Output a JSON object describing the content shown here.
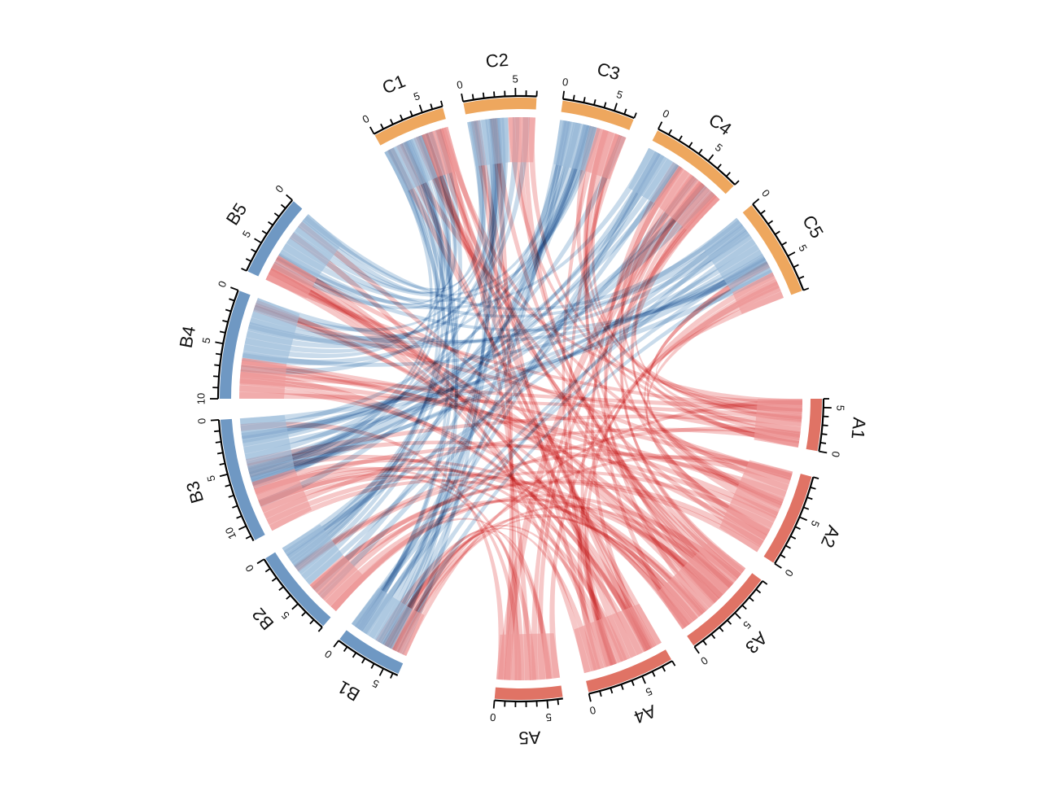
{
  "chart_data": {
    "type": "chord",
    "title": "",
    "center": [
      640,
      490
    ],
    "colors": {
      "A_sector": "#E07365",
      "B_sector": "#6F98C3",
      "C_sector": "#EEA75E",
      "A_ribbon": "#EE9A9A",
      "B_ribbon": "#9DBDDA",
      "background": "#FFFFFF"
    },
    "sectors": [
      {
        "name": "A1",
        "group": "A",
        "start_deg": 90,
        "end_deg": 100,
        "max": 6,
        "ticks_labeled": [
          "0",
          "5"
        ],
        "direction": "clockwise"
      },
      {
        "name": "A2",
        "group": "A",
        "start_deg": 105,
        "end_deg": 123,
        "max": 9,
        "ticks_labeled": [
          "0",
          "5"
        ]
      },
      {
        "name": "A3",
        "group": "A",
        "start_deg": 127,
        "end_deg": 145,
        "max": 9,
        "ticks_labeled": [
          "0",
          "5"
        ]
      },
      {
        "name": "A4",
        "group": "A",
        "start_deg": 150,
        "end_deg": 167,
        "max": 8,
        "ticks_labeled": [
          "0",
          "5"
        ]
      },
      {
        "name": "A5",
        "group": "A",
        "start_deg": 172,
        "end_deg": 185,
        "max": 6.5,
        "ticks_labeled": [
          "0",
          "5"
        ]
      },
      {
        "name": "B1",
        "group": "B",
        "start_deg": 204,
        "end_deg": 217,
        "max": 6.5,
        "ticks_labeled": [
          "0",
          "5"
        ]
      },
      {
        "name": "B2",
        "group": "B",
        "start_deg": 221,
        "end_deg": 238,
        "max": 8,
        "ticks_labeled": [
          "0",
          "5"
        ]
      },
      {
        "name": "B3",
        "group": "B",
        "start_deg": 242,
        "end_deg": 266,
        "max": 11.5,
        "ticks_labeled": [
          "0",
          "5",
          "10"
        ]
      },
      {
        "name": "B4",
        "group": "B",
        "start_deg": 270,
        "end_deg": 291,
        "max": 10,
        "ticks_labeled": [
          "0",
          "5",
          "10"
        ]
      },
      {
        "name": "B5",
        "group": "B",
        "start_deg": 295,
        "end_deg": 311,
        "max": 8,
        "ticks_labeled": [
          "0",
          "5"
        ]
      },
      {
        "name": "C1",
        "group": "C",
        "start_deg": 331,
        "end_deg": 345,
        "max": 7,
        "ticks_labeled": [
          "0",
          "5"
        ]
      },
      {
        "name": "C2",
        "group": "C",
        "start_deg": 349,
        "end_deg": 363,
        "max": 7,
        "ticks_labeled": [
          "0",
          "5"
        ]
      },
      {
        "name": "C3",
        "group": "C",
        "start_deg": 368,
        "end_deg": 382,
        "max": 7,
        "ticks_labeled": [
          "0",
          "5"
        ]
      },
      {
        "name": "C4",
        "group": "C",
        "start_deg": 387,
        "end_deg": 405,
        "max": 8,
        "ticks_labeled": [
          "0",
          "5"
        ]
      },
      {
        "name": "C5",
        "group": "C",
        "start_deg": 410,
        "end_deg": 429,
        "max": 8,
        "ticks_labeled": [
          "0",
          "5"
        ]
      }
    ],
    "links": [
      {
        "from": "C1",
        "to": "B",
        "color": "B_ribbon",
        "frac": [
          0.0,
          0.6
        ]
      },
      {
        "from": "C1",
        "to": "A",
        "color": "A_ribbon",
        "frac": [
          0.6,
          1.0
        ]
      },
      {
        "from": "C2",
        "to": "B",
        "color": "B_ribbon",
        "frac": [
          0.0,
          0.6
        ]
      },
      {
        "from": "C2",
        "to": "A",
        "color": "A_ribbon",
        "frac": [
          0.6,
          1.0
        ]
      },
      {
        "from": "C3",
        "to": "B",
        "color": "B_ribbon",
        "frac": [
          0.0,
          0.55
        ]
      },
      {
        "from": "C3",
        "to": "A",
        "color": "A_ribbon",
        "frac": [
          0.55,
          1.0
        ]
      },
      {
        "from": "C4",
        "to": "B",
        "color": "B_ribbon",
        "frac": [
          0.0,
          0.4
        ]
      },
      {
        "from": "C4",
        "to": "A",
        "color": "A_ribbon",
        "frac": [
          0.4,
          1.0
        ]
      },
      {
        "from": "C5",
        "to": "B",
        "color": "B_ribbon",
        "frac": [
          0.0,
          0.7
        ]
      },
      {
        "from": "C5",
        "to": "A",
        "color": "A_ribbon",
        "frac": [
          0.7,
          1.0
        ]
      },
      {
        "from": "B1",
        "to": "A",
        "color": "A_ribbon",
        "frac": [
          0.0,
          0.25
        ]
      },
      {
        "from": "B1",
        "to": "C",
        "color": "B_ribbon",
        "frac": [
          0.25,
          1.0
        ]
      },
      {
        "from": "B2",
        "to": "A",
        "color": "A_ribbon",
        "frac": [
          0.0,
          0.45
        ]
      },
      {
        "from": "B2",
        "to": "C",
        "color": "B_ribbon",
        "frac": [
          0.45,
          1.0
        ]
      },
      {
        "from": "B3",
        "to": "A",
        "color": "A_ribbon",
        "frac": [
          0.0,
          0.45
        ]
      },
      {
        "from": "B3",
        "to": "C",
        "color": "B_ribbon",
        "frac": [
          0.45,
          1.0
        ]
      },
      {
        "from": "B4",
        "to": "A",
        "color": "A_ribbon",
        "frac": [
          0.0,
          0.4
        ]
      },
      {
        "from": "B4",
        "to": "C",
        "color": "B_ribbon",
        "frac": [
          0.4,
          1.0
        ]
      },
      {
        "from": "B5",
        "to": "A",
        "color": "A_ribbon",
        "frac": [
          0.0,
          0.35
        ]
      },
      {
        "from": "B5",
        "to": "C",
        "color": "B_ribbon",
        "frac": [
          0.35,
          1.0
        ]
      },
      {
        "from": "A1",
        "to": "BC",
        "color": "A_ribbon",
        "frac": [
          0.0,
          1.0
        ]
      },
      {
        "from": "A2",
        "to": "BC",
        "color": "A_ribbon",
        "frac": [
          0.0,
          1.0
        ]
      },
      {
        "from": "A3",
        "to": "BC",
        "color": "A_ribbon",
        "frac": [
          0.0,
          1.0
        ]
      },
      {
        "from": "A4",
        "to": "BC",
        "color": "A_ribbon",
        "frac": [
          0.0,
          1.0
        ]
      },
      {
        "from": "A5",
        "to": "BC",
        "color": "A_ribbon",
        "frac": [
          0.0,
          1.0
        ]
      }
    ],
    "legend": null,
    "xlabel": "",
    "ylabel": ""
  }
}
